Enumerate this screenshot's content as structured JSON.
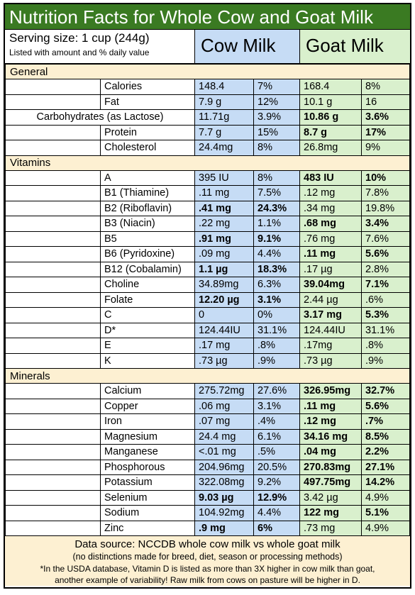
{
  "title": "Nutrition Facts for Whole Cow and Goat Milk",
  "header": {
    "serving": "Serving size:  1 cup (244g)",
    "note": "Listed with amount and % daily value",
    "cow": "Cow Milk",
    "goat": "Goat Milk"
  },
  "sections": [
    {
      "name": "General",
      "rows": [
        {
          "n": "Calories",
          "cv": "148.4",
          "cp": "7%",
          "gv": "168.4",
          "gp": "8%",
          "cb": false,
          "gb": false
        },
        {
          "n": "Fat",
          "cv": "7.9 g",
          "cp": "12%",
          "gv": "10.1 g",
          "gp": "16",
          "cb": false,
          "gb": false
        },
        {
          "n": "Carbohydrates (as Lactose)",
          "cv": "11.71g",
          "cp": "3.9%",
          "gv": "10.86 g",
          "gp": "3.6%",
          "cb": false,
          "gb": true,
          "center": true
        },
        {
          "n": "Protein",
          "cv": "7.7 g",
          "cp": "15%",
          "gv": "8.7 g",
          "gp": "17%",
          "cb": false,
          "gb": true
        },
        {
          "n": "Cholesterol",
          "cv": "24.4mg",
          "cp": "8%",
          "gv": "26.8mg",
          "gp": "9%",
          "cb": false,
          "gb": false
        }
      ]
    },
    {
      "name": "Vitamins",
      "rows": [
        {
          "n": "A",
          "cv": "395 IU",
          "cp": "8%",
          "gv": "483 IU",
          "gp": "10%",
          "cb": false,
          "gb": true
        },
        {
          "n": "B1 (Thiamine)",
          "cv": ".11 mg",
          "cp": "7.5%",
          "gv": ".12 mg",
          "gp": "7.8%",
          "cb": false,
          "gb": false
        },
        {
          "n": "B2 (Riboflavin)",
          "cv": ".41 mg",
          "cp": "24.3%",
          "gv": ".34 mg",
          "gp": "19.8%",
          "cb": true,
          "gb": false
        },
        {
          "n": "B3 (Niacin)",
          "cv": ".22 mg",
          "cp": "1.1%",
          "gv": ".68 mg",
          "gp": "3.4%",
          "cb": false,
          "gb": true
        },
        {
          "n": "B5",
          "cv": ".91 mg",
          "cp": "9.1%",
          "gv": ".76 mg",
          "gp": "7.6%",
          "cb": true,
          "gb": false
        },
        {
          "n": "B6 (Pyridoxine)",
          "cv": ".09 mg",
          "cp": "4.4%",
          "gv": ".11 mg",
          "gp": "5.6%",
          "cb": false,
          "gb": true
        },
        {
          "n": "B12 (Cobalamin)",
          "cv": "1.1 µg",
          "cp": "18.3%",
          "gv": ".17 µg",
          "gp": "2.8%",
          "cb": true,
          "gb": false
        },
        {
          "n": "Choline",
          "cv": "34.89mg",
          "cp": "6.3%",
          "gv": "39.04mg",
          "gp": "7.1%",
          "cb": false,
          "gb": true
        },
        {
          "n": "Folate",
          "cv": "12.20 µg",
          "cp": "3.1%",
          "gv": "2.44 µg",
          "gp": ".6%",
          "cb": true,
          "gb": false
        },
        {
          "n": "C",
          "cv": "0",
          "cp": "0%",
          "gv": "3.17 mg",
          "gp": "5.3%",
          "cb": false,
          "gb": true
        },
        {
          "n": "D*",
          "cv": "124.44IU",
          "cp": "31.1%",
          "gv": "124.44IU",
          "gp": "31.1%",
          "cb": false,
          "gb": false
        },
        {
          "n": "E",
          "cv": ".17 mg",
          "cp": ".8%",
          "gv": ".17mg",
          "gp": ".8%",
          "cb": false,
          "gb": false
        },
        {
          "n": "K",
          "cv": ".73 µg",
          "cp": ".9%",
          "gv": ".73 µg",
          "gp": ".9%",
          "cb": false,
          "gb": false
        }
      ]
    },
    {
      "name": "Minerals",
      "rows": [
        {
          "n": "Calcium",
          "cv": "275.72mg",
          "cp": "27.6%",
          "gv": "326.95mg",
          "gp": "32.7%",
          "cb": false,
          "gb": true
        },
        {
          "n": "Copper",
          "cv": ".06 mg",
          "cp": "3.1%",
          "gv": ".11 mg",
          "gp": "5.6%",
          "cb": false,
          "gb": true
        },
        {
          "n": "Iron",
          "cv": ".07 mg",
          "cp": ".4%",
          "gv": ".12 mg",
          "gp": ".7%",
          "cb": false,
          "gb": true
        },
        {
          "n": "Magnesium",
          "cv": "24.4 mg",
          "cp": "6.1%",
          "gv": "34.16 mg",
          "gp": "8.5%",
          "cb": false,
          "gb": true
        },
        {
          "n": "Manganese",
          "cv": "<.01 mg",
          "cp": ".5%",
          "gv": ".04 mg",
          "gp": "2.2%",
          "cb": false,
          "gb": true
        },
        {
          "n": "Phosphorous",
          "cv": "204.96mg",
          "cp": "20.5%",
          "gv": "270.83mg",
          "gp": "27.1%",
          "cb": false,
          "gb": true
        },
        {
          "n": "Potassium",
          "cv": "322.08mg",
          "cp": "9.2%",
          "gv": "497.75mg",
          "gp": "14.2%",
          "cb": false,
          "gb": true
        },
        {
          "n": "Selenium",
          "cv": "9.03 µg",
          "cp": "12.9%",
          "gv": "3.42 µg",
          "gp": "4.9%",
          "cb": true,
          "gb": false
        },
        {
          "n": "Sodium",
          "cv": "104.92mg",
          "cp": "4.4%",
          "gv": "122 mg",
          "gp": "5.1%",
          "cb": false,
          "gb": true
        },
        {
          "n": "Zinc",
          "cv": ".9 mg",
          "cp": "6%",
          "gv": ".73 mg",
          "gp": "4.9%",
          "cb": true,
          "gb": false
        }
      ]
    }
  ],
  "footer": {
    "source": "Data source: NCCDB whole cow milk vs whole goat milk",
    "disclaimer": "(no distinctions made for breed, diet, season or processing methods)",
    "note_line1": "*In the USDA database, Vitamin D is listed as more than 3X higher in cow milk than goat,",
    "note_line2": "another example of variability! Raw milk from cows on pasture will be higher in D."
  },
  "colors": {
    "title_bg": "#3a7a22",
    "cow_bg": "#c6dcf5",
    "goat_bg": "#d9f0cd",
    "section_bg": "#fdf0d2"
  }
}
